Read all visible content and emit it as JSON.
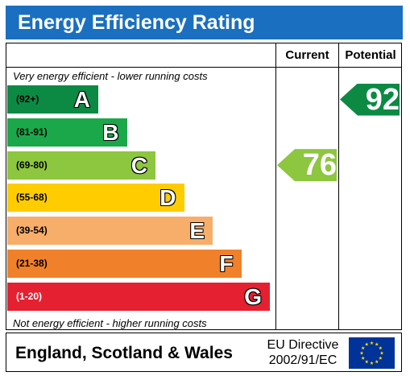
{
  "title": "Energy Efficiency Rating",
  "columns": {
    "current": "Current",
    "potential": "Potential"
  },
  "top_note": "Very energy efficient - lower running costs",
  "bottom_note": "Not energy efficient - higher running costs",
  "footer": {
    "region": "England, Scotland & Wales",
    "directive_line1": "EU Directive",
    "directive_line2": "2002/91/EC"
  },
  "chart_data": {
    "type": "bar",
    "title": "Energy Efficiency Rating",
    "categories": [
      "A",
      "B",
      "C",
      "D",
      "E",
      "F",
      "G"
    ],
    "bands": [
      {
        "letter": "A",
        "range": "(92+)",
        "color": "#0c8a44"
      },
      {
        "letter": "B",
        "range": "(81-91)",
        "color": "#1ba84a"
      },
      {
        "letter": "C",
        "range": "(69-80)",
        "color": "#8dc63f"
      },
      {
        "letter": "D",
        "range": "(55-68)",
        "color": "#ffcc00"
      },
      {
        "letter": "E",
        "range": "(39-54)",
        "color": "#f7ae6a"
      },
      {
        "letter": "F",
        "range": "(21-38)",
        "color": "#f0802a"
      },
      {
        "letter": "G",
        "range": "(1-20)",
        "color": "#e52030"
      }
    ],
    "current": {
      "value": 76,
      "band": "C",
      "color": "#8dc63f"
    },
    "potential": {
      "value": 92,
      "band": "A",
      "color": "#0c8a44"
    }
  },
  "colors": {
    "title_bar": "#1a6fc0",
    "flag_blue": "#003399",
    "flag_star": "#ffdd00"
  }
}
